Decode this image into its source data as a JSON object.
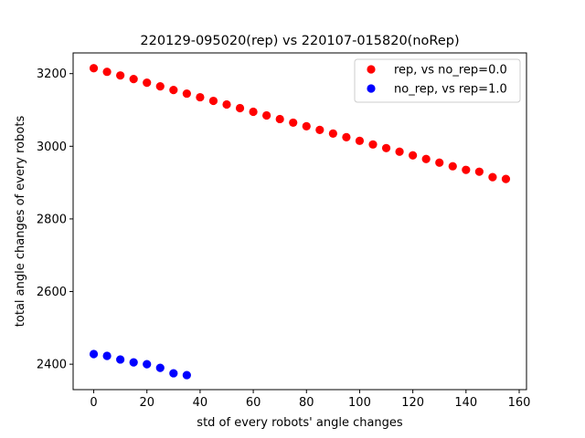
{
  "chart_data": {
    "type": "scatter",
    "title": "220129-095020(rep) vs 220107-015820(noRep)",
    "xlabel": "std of every robots' angle changes",
    "ylabel": "total angle changes of every robots",
    "xlim": [
      -7.75,
      162.75
    ],
    "ylim": [
      2330,
      3257
    ],
    "xticks": [
      0,
      20,
      40,
      60,
      80,
      100,
      120,
      140,
      160
    ],
    "yticks": [
      2400,
      2600,
      2800,
      3000,
      3200
    ],
    "grid": false,
    "legend_position": "top-right",
    "series": [
      {
        "name": "rep, vs no_rep=0.0",
        "color": "#ff0000",
        "x": [
          0,
          5,
          10,
          15,
          20,
          25,
          30,
          35,
          40,
          45,
          50,
          55,
          60,
          65,
          70,
          75,
          80,
          85,
          90,
          95,
          100,
          105,
          110,
          115,
          120,
          125,
          130,
          135,
          140,
          145,
          150,
          155
        ],
        "y": [
          3215,
          3205,
          3195,
          3185,
          3175,
          3165,
          3155,
          3145,
          3135,
          3125,
          3115,
          3105,
          3095,
          3085,
          3075,
          3065,
          3055,
          3045,
          3035,
          3025,
          3015,
          3005,
          2995,
          2985,
          2975,
          2965,
          2955,
          2945,
          2935,
          2930,
          2915,
          2910
        ]
      },
      {
        "name": "no_rep, vs rep=1.0",
        "color": "#0000ff",
        "x": [
          0,
          5,
          10,
          15,
          20,
          25,
          30,
          35
        ],
        "y": [
          2428,
          2423,
          2413,
          2405,
          2400,
          2390,
          2375,
          2370
        ]
      }
    ]
  }
}
